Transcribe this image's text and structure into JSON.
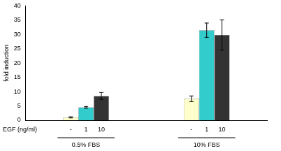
{
  "chart_data": {
    "type": "bar",
    "x_label": "EGF (ng/ml)",
    "y_label": "fold induction",
    "categories": [
      "0.5% FBS",
      "10% FBS"
    ],
    "series": [
      {
        "name": "-",
        "color": "#ffffcc",
        "values": [
          1.0,
          7.5
        ],
        "errors": [
          0.2,
          1.0
        ]
      },
      {
        "name": "1",
        "color": "#33cccc",
        "values": [
          4.5,
          31.5
        ],
        "errors": [
          0.3,
          2.5
        ]
      },
      {
        "name": "10",
        "color": "#333333",
        "values": [
          8.5,
          29.8
        ],
        "errors": [
          1.2,
          5.3
        ]
      }
    ],
    "ylim": [
      0,
      40
    ],
    "yticks": [
      0,
      5,
      10,
      15,
      20,
      25,
      30,
      35,
      40
    ],
    "grid": false
  }
}
